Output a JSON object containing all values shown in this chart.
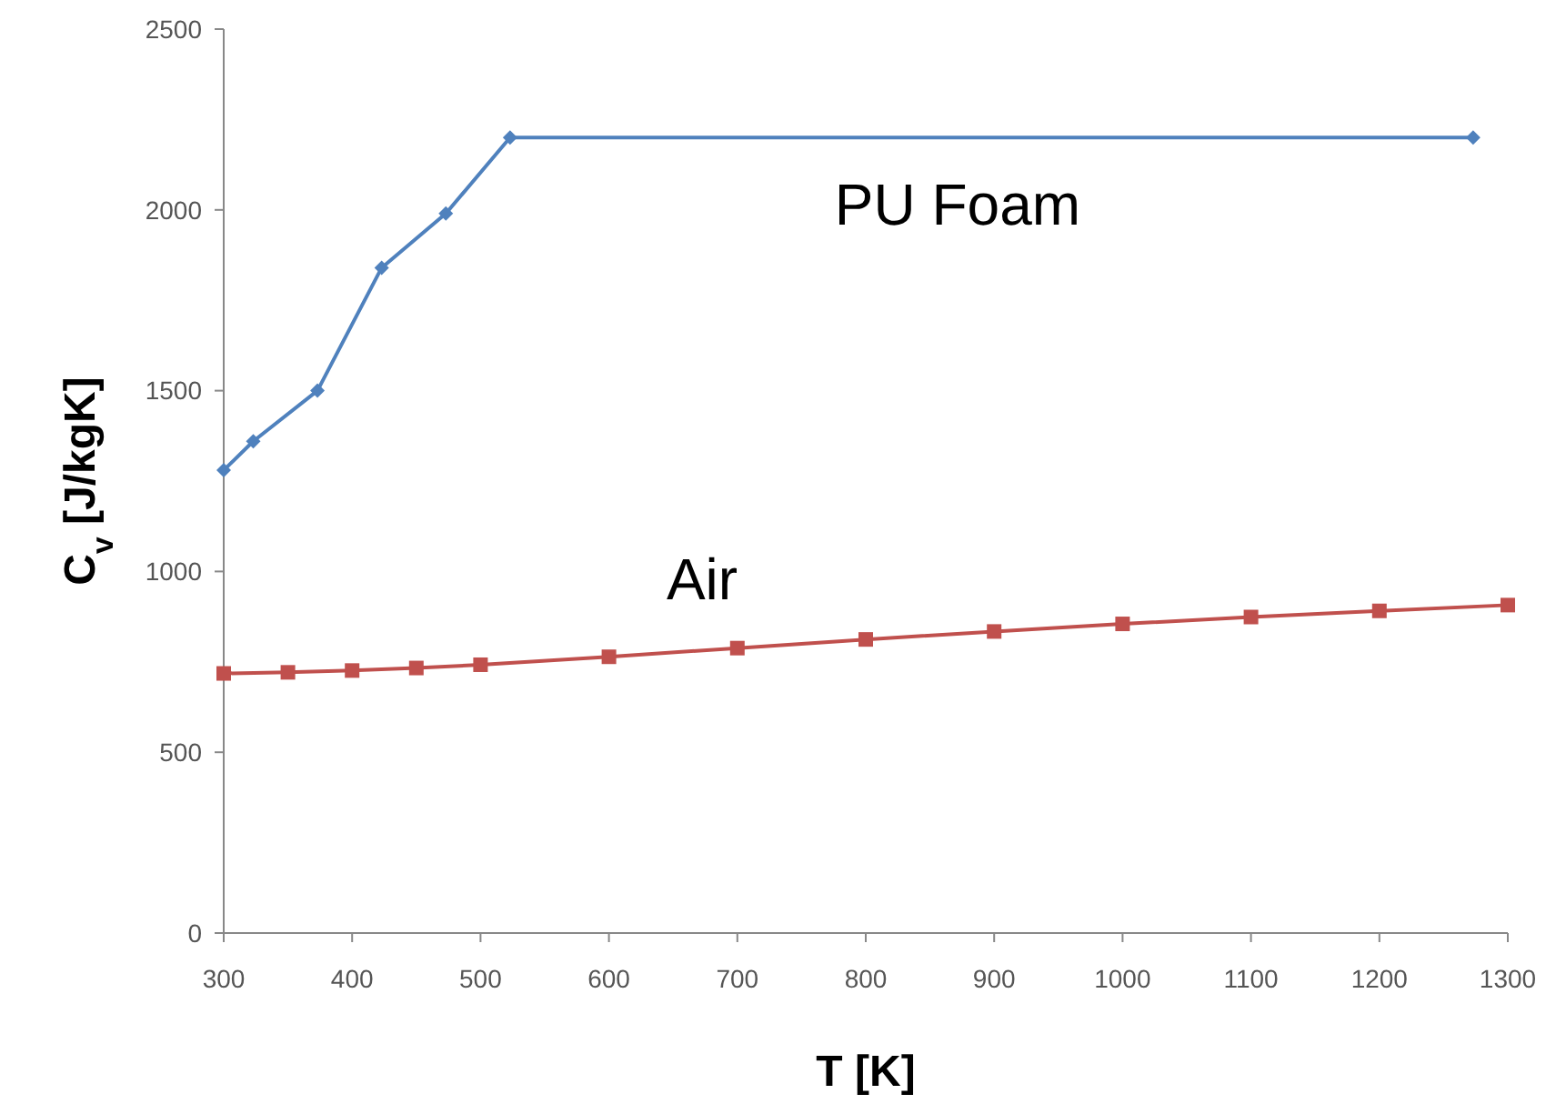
{
  "chart_data": {
    "type": "line",
    "xlabel": "T [K]",
    "ylabel": "C$_{v}$ [J/kgK]",
    "xlim": [
      300,
      1300
    ],
    "xticks": [
      300,
      400,
      500,
      600,
      700,
      800,
      900,
      1000,
      1100,
      1200,
      1300
    ],
    "ylim": [
      0,
      2500
    ],
    "yticks": [
      0,
      500,
      1000,
      1500,
      2000,
      2500
    ],
    "grid": false,
    "series": [
      {
        "name": "PU Foam",
        "color": "#4f81bd",
        "marker": "diamond",
        "x": [
          300,
          323,
          373,
          423,
          473,
          523,
          1273
        ],
        "values": [
          1280,
          1360,
          1500,
          1840,
          1990,
          2200,
          2200
        ]
      },
      {
        "name": "Air",
        "color": "#c0504d",
        "marker": "square",
        "x": [
          300,
          350,
          400,
          450,
          500,
          600,
          700,
          800,
          900,
          1000,
          1100,
          1200,
          1300
        ],
        "values": [
          718,
          721,
          726,
          733,
          742,
          764,
          788,
          812,
          834,
          855,
          874,
          891,
          907
        ]
      }
    ]
  }
}
